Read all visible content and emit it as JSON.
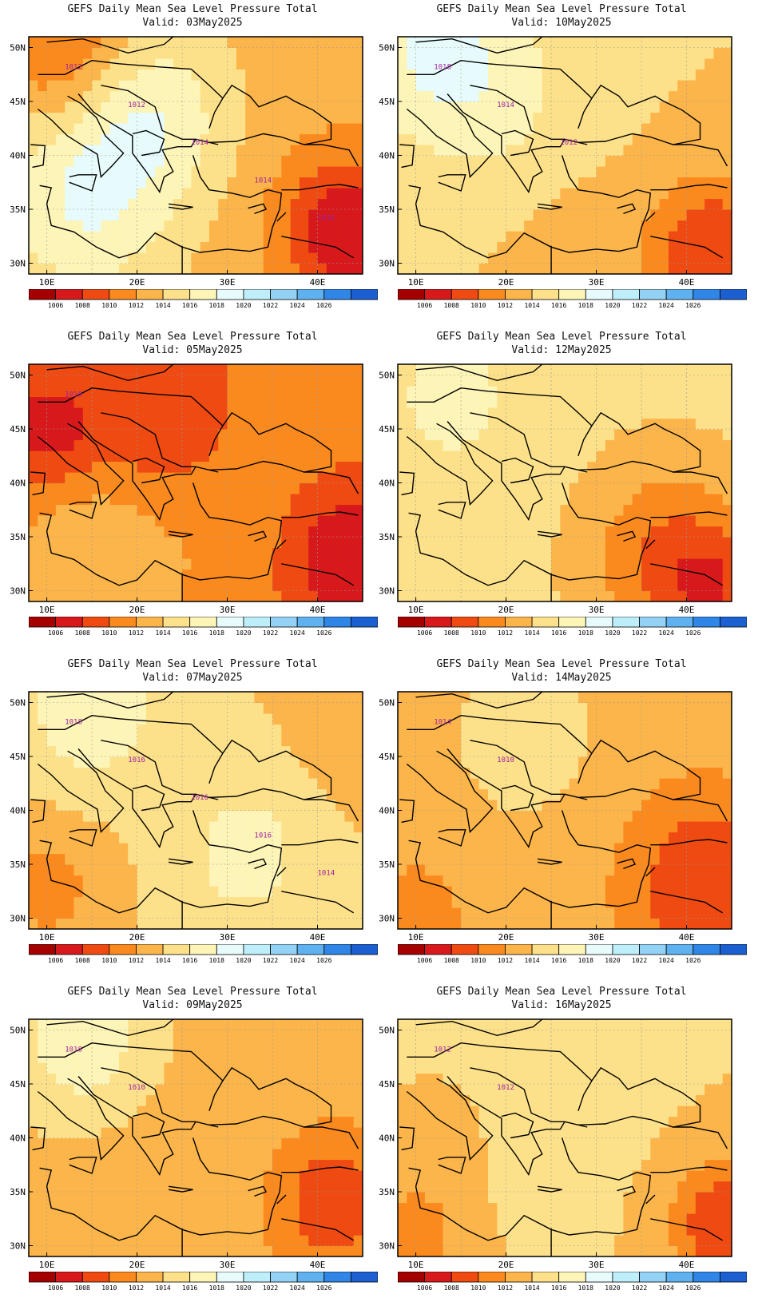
{
  "title": "GEFS Daily Mean Sea Level Pressure Total",
  "valid_prefix": "Valid: ",
  "panels": [
    {
      "date": "03May2025",
      "contour_labels": [
        "1012",
        "1012",
        "1014",
        "1014",
        "1016"
      ],
      "note": "high pressure over Balkans/Italy, low over Middle East"
    },
    {
      "date": "10May2025",
      "contour_labels": [
        "1018",
        "1014",
        "1012"
      ],
      "note": "mostly 1012-1016, low over SE"
    },
    {
      "date": "05May2025",
      "contour_labels": [
        "1010"
      ],
      "note": "low over central Europe and Middle East"
    },
    {
      "date": "12May2025",
      "contour_labels": [],
      "note": "1014-1016 over Balkans, deep low SE"
    },
    {
      "date": "07May2025",
      "contour_labels": [
        "1018",
        "1016",
        "1016",
        "1016",
        "1014"
      ],
      "note": "high over Turkey/central Med"
    },
    {
      "date": "14May2025",
      "contour_labels": [
        "1014",
        "1010"
      ],
      "note": "1012 over Med, low SE"
    },
    {
      "date": "09May2025",
      "contour_labels": [
        "1018",
        "1010"
      ],
      "note": "1014 over Europe, low SE"
    },
    {
      "date": "16May2025",
      "contour_labels": [
        "1012",
        "1012"
      ],
      "note": "1014 over Europe, low SE"
    }
  ],
  "axes": {
    "lat_ticks": [
      "50N",
      "45N",
      "40N",
      "35N",
      "30N"
    ],
    "lon_ticks": [
      "10E",
      "20E",
      "30E",
      "40E"
    ]
  },
  "colorbar": {
    "labels": [
      "1006",
      "1008",
      "1010",
      "1012",
      "1014",
      "1016",
      "1018",
      "1020",
      "1022",
      "1024",
      "1026"
    ],
    "colors": [
      "#a50000",
      "#d7191c",
      "#ee4a12",
      "#fb8a1e",
      "#fcb54a",
      "#fde18a",
      "#fdf4b7",
      "#e7fbfc",
      "#bdeef9",
      "#93d2f5",
      "#5fb2ef",
      "#2f86e6",
      "#1b5fd0"
    ]
  },
  "chart_data": [
    {
      "type": "heatmap",
      "title": "GEFS Daily Mean Sea Level Pressure Total",
      "subtitle": "Valid: 03May2025",
      "x_range": [
        8,
        45
      ],
      "y_range": [
        29,
        51
      ],
      "xlabel": "",
      "ylabel": ""
    },
    {
      "type": "heatmap",
      "title": "GEFS Daily Mean Sea Level Pressure Total",
      "subtitle": "Valid: 10May2025",
      "x_range": [
        8,
        45
      ],
      "y_range": [
        29,
        51
      ],
      "xlabel": "",
      "ylabel": ""
    },
    {
      "type": "heatmap",
      "title": "GEFS Daily Mean Sea Level Pressure Total",
      "subtitle": "Valid: 05May2025",
      "x_range": [
        8,
        45
      ],
      "y_range": [
        29,
        51
      ],
      "xlabel": "",
      "ylabel": ""
    },
    {
      "type": "heatmap",
      "title": "GEFS Daily Mean Sea Level Pressure Total",
      "subtitle": "Valid: 12May2025",
      "x_range": [
        8,
        45
      ],
      "y_range": [
        29,
        51
      ],
      "xlabel": "",
      "ylabel": ""
    },
    {
      "type": "heatmap",
      "title": "GEFS Daily Mean Sea Level Pressure Total",
      "subtitle": "Valid: 07May2025",
      "x_range": [
        8,
        45
      ],
      "y_range": [
        29,
        51
      ],
      "xlabel": "",
      "ylabel": ""
    },
    {
      "type": "heatmap",
      "title": "GEFS Daily Mean Sea Level Pressure Total",
      "subtitle": "Valid: 14May2025",
      "x_range": [
        8,
        45
      ],
      "y_range": [
        29,
        51
      ],
      "xlabel": "",
      "ylabel": ""
    },
    {
      "type": "heatmap",
      "title": "GEFS Daily Mean Sea Level Pressure Total",
      "subtitle": "Valid: 09May2025",
      "x_range": [
        8,
        45
      ],
      "y_range": [
        29,
        51
      ],
      "xlabel": "",
      "ylabel": ""
    },
    {
      "type": "heatmap",
      "title": "GEFS Daily Mean Sea Level Pressure Total",
      "subtitle": "Valid: 16May2025",
      "x_range": [
        8,
        45
      ],
      "y_range": [
        29,
        51
      ],
      "xlabel": "",
      "ylabel": ""
    }
  ]
}
